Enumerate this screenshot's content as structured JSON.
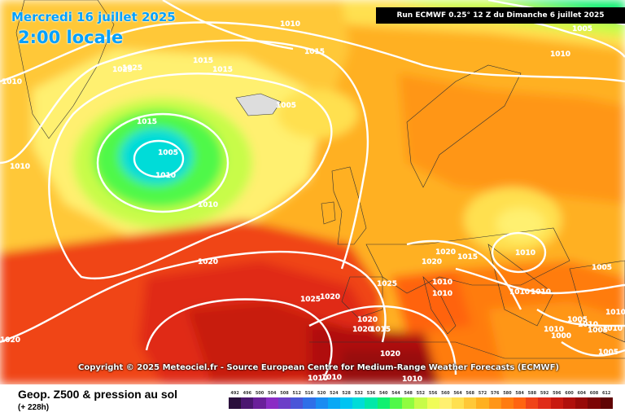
{
  "header": {
    "date_title": "Mercredi 16 juillet 2025",
    "time_title": "2:00 locale",
    "run_info": "Run ECMWF 0.25° 12 Z du Dimanche 6 juillet 2025"
  },
  "copyright": "Copyright © 2025 Meteociel.fr - Source European Centre for Medium-Range Weather Forecasts (ECMWF)",
  "footer": {
    "parameter": "Geop. Z500 & pression au sol",
    "lead_time": "(+ 228h)"
  },
  "scale": {
    "values": [
      "492",
      "496",
      "500",
      "504",
      "508",
      "512",
      "516",
      "520",
      "524",
      "528",
      "532",
      "536",
      "540",
      "544",
      "548",
      "552",
      "556",
      "560",
      "564",
      "568",
      "572",
      "576",
      "580",
      "584",
      "588",
      "592",
      "596",
      "600",
      "604",
      "608",
      "612"
    ],
    "colors": [
      "#2a0f3c",
      "#4b1670",
      "#6a1f9a",
      "#8a2cc4",
      "#6c3ec8",
      "#4a55d8",
      "#2f6fe8",
      "#1a8cf2",
      "#0aa8f5",
      "#00c4f2",
      "#00dcd8",
      "#00e8a8",
      "#10f070",
      "#50f848",
      "#90fc40",
      "#c8fc48",
      "#f0fc58",
      "#fff070",
      "#ffe050",
      "#ffc838",
      "#ffb020",
      "#ff9618",
      "#ff7c10",
      "#ff6410",
      "#f04418",
      "#e02c18",
      "#c81a10",
      "#b0100c",
      "#980a08",
      "#7c0606",
      "#600404"
    ]
  },
  "map": {
    "isobar_labels": [
      "1010",
      "1015",
      "1010",
      "1025",
      "1025",
      "1015",
      "1015",
      "1010",
      "1015",
      "1005",
      "1010",
      "1010",
      "1005",
      "1010",
      "1020",
      "1020",
      "1020",
      "1015",
      "1010",
      "1010",
      "1010",
      "1020",
      "1025",
      "1025",
      "1020",
      "1020",
      "1020",
      "1015",
      "1010",
      "1010",
      "1010",
      "1005",
      "1000",
      "1005",
      "1010",
      "1010",
      "1010",
      "1010",
      "1005",
      "1005",
      "1010",
      "1010",
      "1020",
      "1005"
    ]
  }
}
